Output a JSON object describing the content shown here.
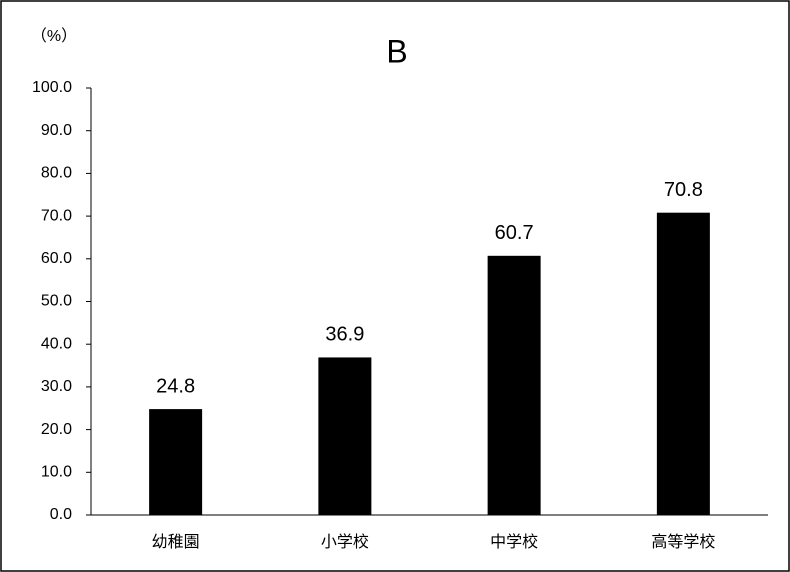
{
  "chart_data": {
    "type": "bar",
    "title": "B",
    "ylabel": "（%）",
    "categories": [
      "幼稚園",
      "小学校",
      "中学校",
      "高等学校"
    ],
    "values": [
      24.8,
      36.9,
      60.7,
      70.8
    ],
    "color": "#000000",
    "ylim": [
      0,
      100
    ],
    "yticks": [
      {
        "value": 0,
        "label": "0.0"
      },
      {
        "value": 10,
        "label": "10.0"
      },
      {
        "value": 20,
        "label": "20.0"
      },
      {
        "value": 30,
        "label": "30.0"
      },
      {
        "value": 40,
        "label": "40.0"
      },
      {
        "value": 50,
        "label": "50.0"
      },
      {
        "value": 60,
        "label": "60.0"
      },
      {
        "value": 70,
        "label": "70.0"
      },
      {
        "value": 80,
        "label": "80.0"
      },
      {
        "value": 90,
        "label": "90.0"
      },
      {
        "value": 100,
        "label": "100.0"
      }
    ],
    "grid": false
  }
}
